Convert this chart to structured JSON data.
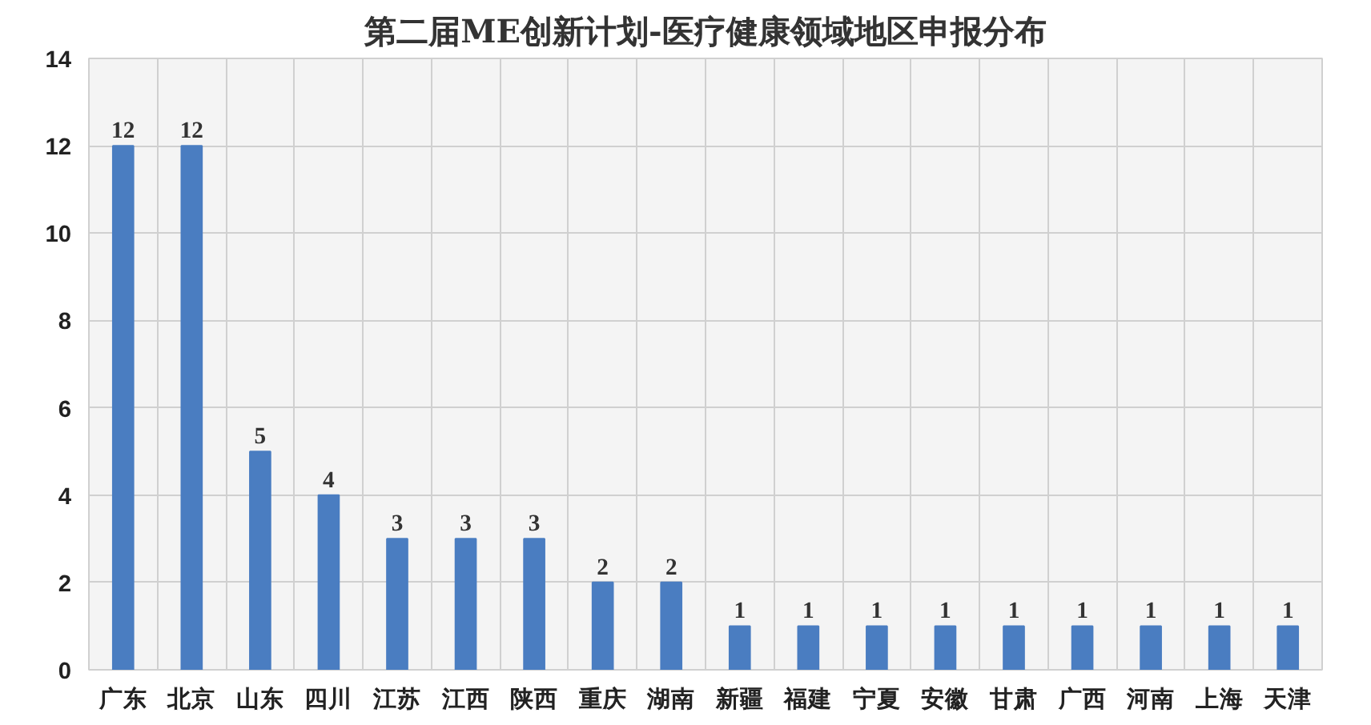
{
  "chart_data": {
    "type": "bar",
    "title": "第二届ME创新计划-医疗健康领域地区申报分布",
    "categories": [
      "广东",
      "北京",
      "山东",
      "四川",
      "江苏",
      "江西",
      "陕西",
      "重庆",
      "湖南",
      "新疆",
      "福建",
      "宁夏",
      "安徽",
      "甘肃",
      "广西",
      "河南",
      "上海",
      "天津"
    ],
    "values": [
      12,
      12,
      5,
      4,
      3,
      3,
      3,
      2,
      2,
      1,
      1,
      1,
      1,
      1,
      1,
      1,
      1,
      1
    ],
    "color": "#4a7dc1",
    "ylim": [
      0,
      14
    ],
    "yticks": [
      0,
      2,
      4,
      6,
      8,
      10,
      12,
      14
    ],
    "grid": true,
    "data_labels": true
  }
}
